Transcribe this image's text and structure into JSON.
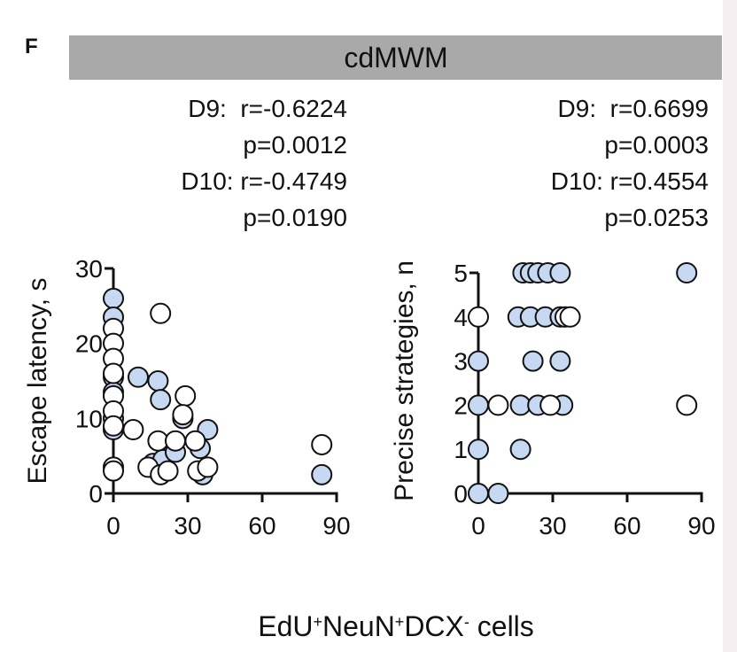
{
  "panel_label": "F",
  "header": "cdMWM",
  "xlabel": [
    {
      "text": "EdU"
    },
    {
      "text": "+",
      "sup": true
    },
    {
      "text": "NeuN"
    },
    {
      "text": "+",
      "sup": true
    },
    {
      "text": "DCX"
    },
    {
      "text": "-",
      "sup": true
    },
    {
      "text": " cells"
    }
  ],
  "chart_data": [
    {
      "type": "scatter",
      "ylabel": "Escape latency, s",
      "annotations": [
        "D9:  r=-0.6224",
        "p=0.0012",
        "D10: r=-0.4749",
        "p=0.0190"
      ],
      "xlim": [
        0,
        90
      ],
      "ylim": [
        0,
        30
      ],
      "xticks": [
        0,
        30,
        60,
        90
      ],
      "yticks": [
        0,
        10,
        20,
        30
      ],
      "series": [
        {
          "color": "#c6d8f2",
          "x": [
            0,
            0,
            0,
            0,
            0,
            0,
            10,
            18,
            19,
            16,
            18,
            20,
            25,
            28,
            35,
            36,
            38,
            84
          ],
          "values": [
            26,
            23.5,
            15.5,
            13.5,
            10,
            8.5,
            15.5,
            15,
            12.5,
            4,
            3,
            4.5,
            5.5,
            10,
            6,
            2.5,
            8.5,
            2.5
          ]
        },
        {
          "color": "#ffffff",
          "x": [
            0,
            0,
            0,
            0,
            0,
            0,
            0,
            0,
            0,
            8,
            19,
            18,
            14,
            19,
            22,
            29,
            28,
            25,
            33,
            34,
            38,
            84
          ],
          "values": [
            22,
            20,
            18,
            16,
            13,
            11,
            9,
            3.5,
            3,
            8.5,
            24,
            7,
            3.5,
            2.5,
            3,
            13,
            10.5,
            7,
            7,
            3,
            3.5,
            6.5
          ]
        }
      ]
    },
    {
      "type": "scatter",
      "ylabel": "Precise strategies, n",
      "annotations": [
        "D9:  r=0.6699",
        "p=0.0003",
        "D10: r=0.4554",
        "p=0.0253"
      ],
      "xlim": [
        0,
        90
      ],
      "ylim": [
        0,
        5
      ],
      "xticks": [
        0,
        30,
        60,
        90
      ],
      "yticks": [
        0,
        1,
        2,
        3,
        4,
        5
      ],
      "series": [
        {
          "color": "#c6d8f2",
          "x": [
            0,
            0,
            0,
            0,
            8,
            18,
            21,
            24,
            28,
            33,
            16,
            21,
            27,
            33,
            22,
            33,
            17,
            24,
            34,
            17,
            84
          ],
          "values": [
            3,
            2,
            1,
            0,
            0,
            5,
            5,
            5,
            5,
            5,
            4,
            4,
            4,
            4,
            3,
            3,
            2,
            2,
            2,
            1,
            5
          ]
        },
        {
          "color": "#ffffff",
          "x": [
            0,
            8,
            29,
            35,
            37,
            84
          ],
          "values": [
            4,
            2,
            2,
            4,
            4,
            2
          ]
        }
      ]
    }
  ]
}
